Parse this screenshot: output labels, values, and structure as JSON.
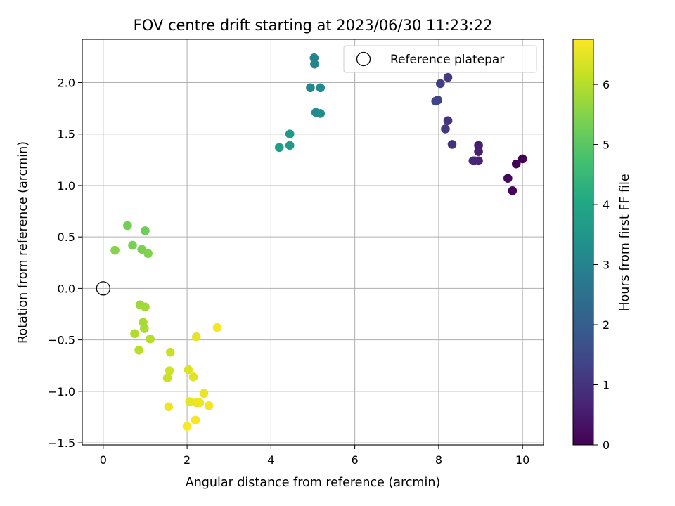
{
  "chart_data": {
    "type": "scatter",
    "title": "FOV centre drift starting at 2023/06/30 11:23:22",
    "xlabel": "Angular distance from reference (arcmin)",
    "ylabel": "Rotation from reference (arcmin)",
    "xlim": [
      -0.5,
      10.5
    ],
    "ylim": [
      -1.52,
      2.42
    ],
    "xticks": [
      "0",
      "2",
      "4",
      "6",
      "8",
      "10"
    ],
    "yticks": [
      "−1.5",
      "−1.0",
      "−0.5",
      "0.0",
      "0.5",
      "1.0",
      "1.5",
      "2.0"
    ],
    "grid": true,
    "legend": {
      "placement": "top-right",
      "entries": [
        "Reference platepar"
      ]
    },
    "reference_point": {
      "x": 0,
      "y": 0
    },
    "colorbar": {
      "label": "Hours from first FF file",
      "colormap": "viridis",
      "range": [
        0,
        6.75
      ],
      "ticks": [
        "0",
        "1",
        "2",
        "3",
        "4",
        "5",
        "6"
      ]
    },
    "points": [
      {
        "x": 10.0,
        "y": 1.26,
        "c": 0.0
      },
      {
        "x": 9.85,
        "y": 1.21,
        "c": 0.05
      },
      {
        "x": 9.65,
        "y": 1.07,
        "c": 0.15
      },
      {
        "x": 9.76,
        "y": 0.95,
        "c": 0.1
      },
      {
        "x": 8.95,
        "y": 1.39,
        "c": 0.55
      },
      {
        "x": 8.95,
        "y": 1.33,
        "c": 0.6
      },
      {
        "x": 8.95,
        "y": 1.24,
        "c": 0.65
      },
      {
        "x": 8.82,
        "y": 1.24,
        "c": 0.75
      },
      {
        "x": 8.86,
        "y": 1.24,
        "c": 0.7
      },
      {
        "x": 8.32,
        "y": 1.4,
        "c": 0.95
      },
      {
        "x": 8.22,
        "y": 1.63,
        "c": 1.0
      },
      {
        "x": 8.16,
        "y": 1.55,
        "c": 1.05
      },
      {
        "x": 8.22,
        "y": 2.05,
        "c": 1.15
      },
      {
        "x": 8.04,
        "y": 1.99,
        "c": 1.2
      },
      {
        "x": 7.98,
        "y": 1.83,
        "c": 1.3
      },
      {
        "x": 7.93,
        "y": 1.82,
        "c": 1.35
      },
      {
        "x": 5.03,
        "y": 2.24,
        "c": 3.0
      },
      {
        "x": 5.04,
        "y": 2.18,
        "c": 3.05
      },
      {
        "x": 4.94,
        "y": 1.95,
        "c": 3.1
      },
      {
        "x": 5.18,
        "y": 1.95,
        "c": 3.15
      },
      {
        "x": 5.07,
        "y": 1.71,
        "c": 3.2
      },
      {
        "x": 5.18,
        "y": 1.7,
        "c": 3.25
      },
      {
        "x": 4.45,
        "y": 1.5,
        "c": 3.6
      },
      {
        "x": 4.45,
        "y": 1.39,
        "c": 3.65
      },
      {
        "x": 4.2,
        "y": 1.37,
        "c": 3.75
      },
      {
        "x": 0.58,
        "y": 0.61,
        "c": 5.3
      },
      {
        "x": 1.0,
        "y": 0.56,
        "c": 5.25
      },
      {
        "x": 0.7,
        "y": 0.42,
        "c": 5.35
      },
      {
        "x": 0.92,
        "y": 0.38,
        "c": 5.4
      },
      {
        "x": 1.07,
        "y": 0.34,
        "c": 5.45
      },
      {
        "x": 0.28,
        "y": 0.37,
        "c": 5.5
      },
      {
        "x": 0.88,
        "y": -0.16,
        "c": 5.75
      },
      {
        "x": 1.0,
        "y": -0.18,
        "c": 5.8
      },
      {
        "x": 0.95,
        "y": -0.33,
        "c": 5.85
      },
      {
        "x": 0.98,
        "y": -0.39,
        "c": 5.9
      },
      {
        "x": 0.75,
        "y": -0.44,
        "c": 5.95
      },
      {
        "x": 1.12,
        "y": -0.49,
        "c": 6.0
      },
      {
        "x": 0.85,
        "y": -0.6,
        "c": 6.05
      },
      {
        "x": 1.6,
        "y": -0.62,
        "c": 6.2
      },
      {
        "x": 1.58,
        "y": -0.8,
        "c": 6.25
      },
      {
        "x": 1.53,
        "y": -0.87,
        "c": 6.2
      },
      {
        "x": 2.22,
        "y": -0.47,
        "c": 6.5
      },
      {
        "x": 2.72,
        "y": -0.38,
        "c": 6.7
      },
      {
        "x": 2.03,
        "y": -0.79,
        "c": 6.4
      },
      {
        "x": 2.15,
        "y": -0.86,
        "c": 6.45
      },
      {
        "x": 2.4,
        "y": -1.02,
        "c": 6.55
      },
      {
        "x": 2.06,
        "y": -1.1,
        "c": 6.5
      },
      {
        "x": 2.22,
        "y": -1.11,
        "c": 6.55
      },
      {
        "x": 2.3,
        "y": -1.11,
        "c": 6.6
      },
      {
        "x": 2.52,
        "y": -1.14,
        "c": 6.65
      },
      {
        "x": 1.56,
        "y": -1.15,
        "c": 6.6
      },
      {
        "x": 2.2,
        "y": -1.28,
        "c": 6.7
      },
      {
        "x": 2.0,
        "y": -1.34,
        "c": 6.72
      }
    ]
  }
}
